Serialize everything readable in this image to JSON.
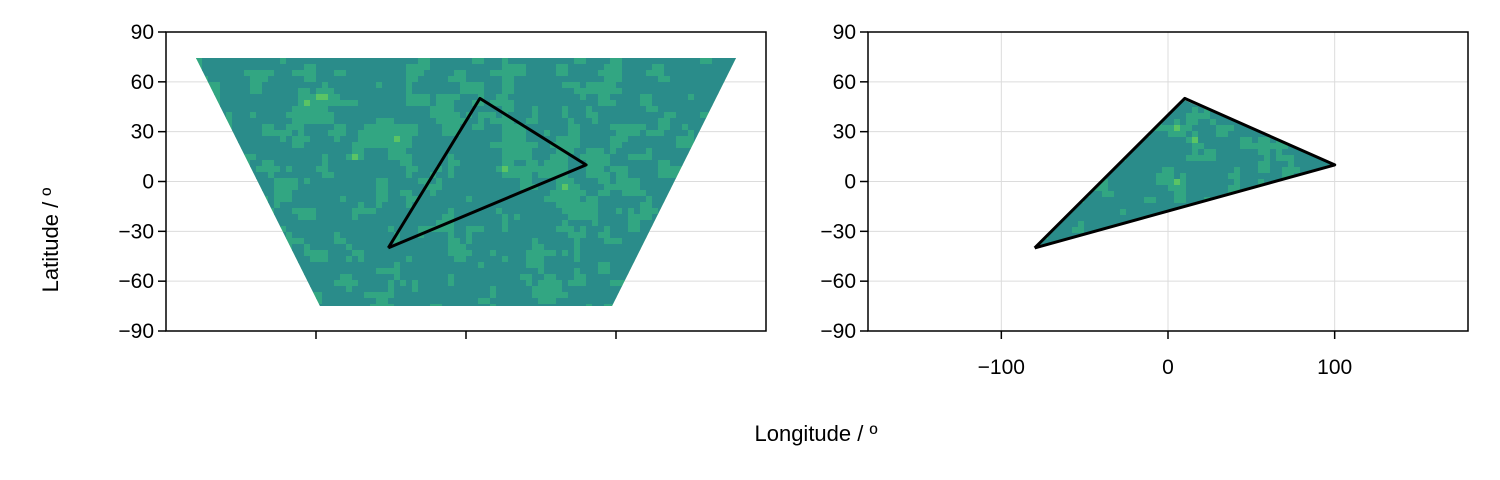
{
  "figure": {
    "xlabel": "Longitude / º",
    "ylabel": "Latitude / º"
  },
  "colors": {
    "palette": [
      "#2a8c8a",
      "#32a682",
      "#5ac465",
      "#a5d934",
      "#fde725"
    ],
    "polygon": "#000000",
    "grid": "#dcdcdc"
  },
  "chart_data": [
    {
      "type": "heatmap",
      "title": "",
      "projection": "trapezoid (projected)",
      "ylim": [
        -90,
        90
      ],
      "yticks": [
        90,
        60,
        30,
        0,
        -30,
        -60,
        -90
      ],
      "ytick_labels": [
        "90",
        "60",
        "30",
        "0",
        "−30",
        "−60",
        "−90"
      ],
      "xtick_labels": [
        "",
        "",
        ""
      ],
      "field_lat_range": [
        -75,
        75
      ],
      "polygon": [
        [
          -80,
          -40
        ],
        [
          10,
          50
        ],
        [
          100,
          10
        ]
      ]
    },
    {
      "type": "heatmap",
      "title": "",
      "xlim": [
        -180,
        180
      ],
      "ylim": [
        -90,
        90
      ],
      "xticks": [
        -100,
        0,
        100
      ],
      "xtick_labels": [
        "−100",
        "0",
        "100"
      ],
      "yticks": [
        90,
        60,
        30,
        0,
        -30,
        -60,
        -90
      ],
      "ytick_labels": [
        "90",
        "60",
        "30",
        "0",
        "−30",
        "−60",
        "−90"
      ],
      "polygon": [
        [
          -80,
          -40
        ],
        [
          10,
          50
        ],
        [
          100,
          10
        ]
      ],
      "masked_to_polygon": true
    }
  ]
}
